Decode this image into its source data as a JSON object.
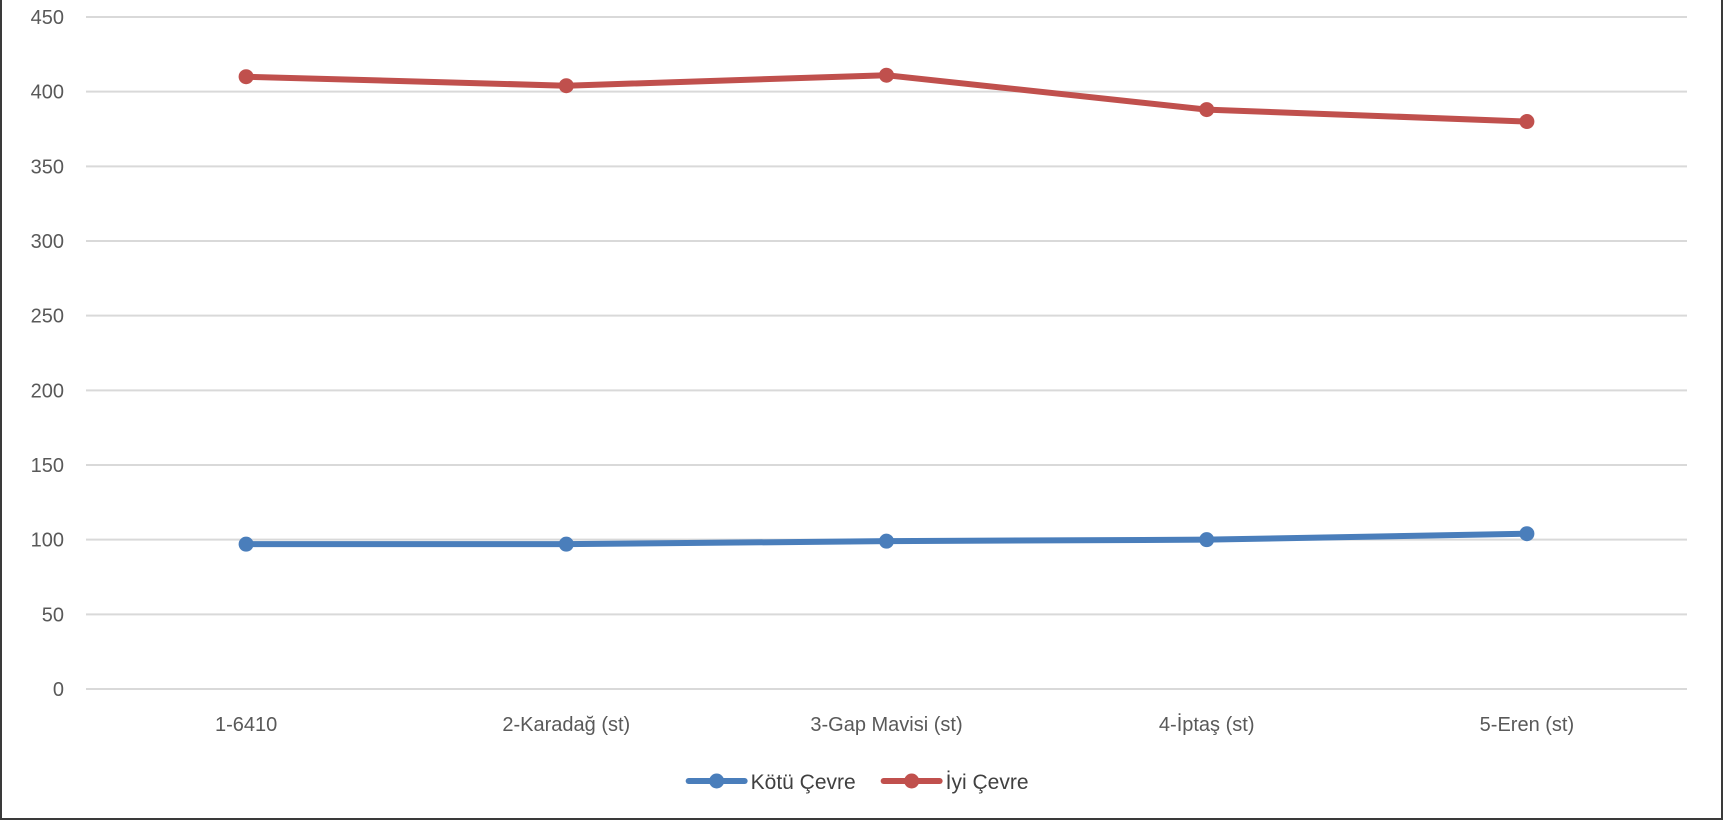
{
  "chart_data": {
    "type": "line",
    "categories": [
      "1-6410",
      "2-Karadağ (st)",
      "3-Gap Mavisi (st)",
      "4-İptaş (st)",
      "5-Eren (st)"
    ],
    "series": [
      {
        "name": "Kötü Çevre",
        "color": "#4a7ebb",
        "values": [
          97,
          97,
          99,
          100,
          104
        ]
      },
      {
        "name": "İyi Çevre",
        "color": "#c0504d",
        "values": [
          410,
          404,
          411,
          388,
          380
        ]
      }
    ],
    "ylim": [
      0,
      450
    ],
    "yticks": [
      0,
      50,
      100,
      150,
      200,
      250,
      300,
      350,
      400,
      450
    ],
    "grid": true,
    "legend": "bottom",
    "gridline_color": "#d9d9d9"
  }
}
